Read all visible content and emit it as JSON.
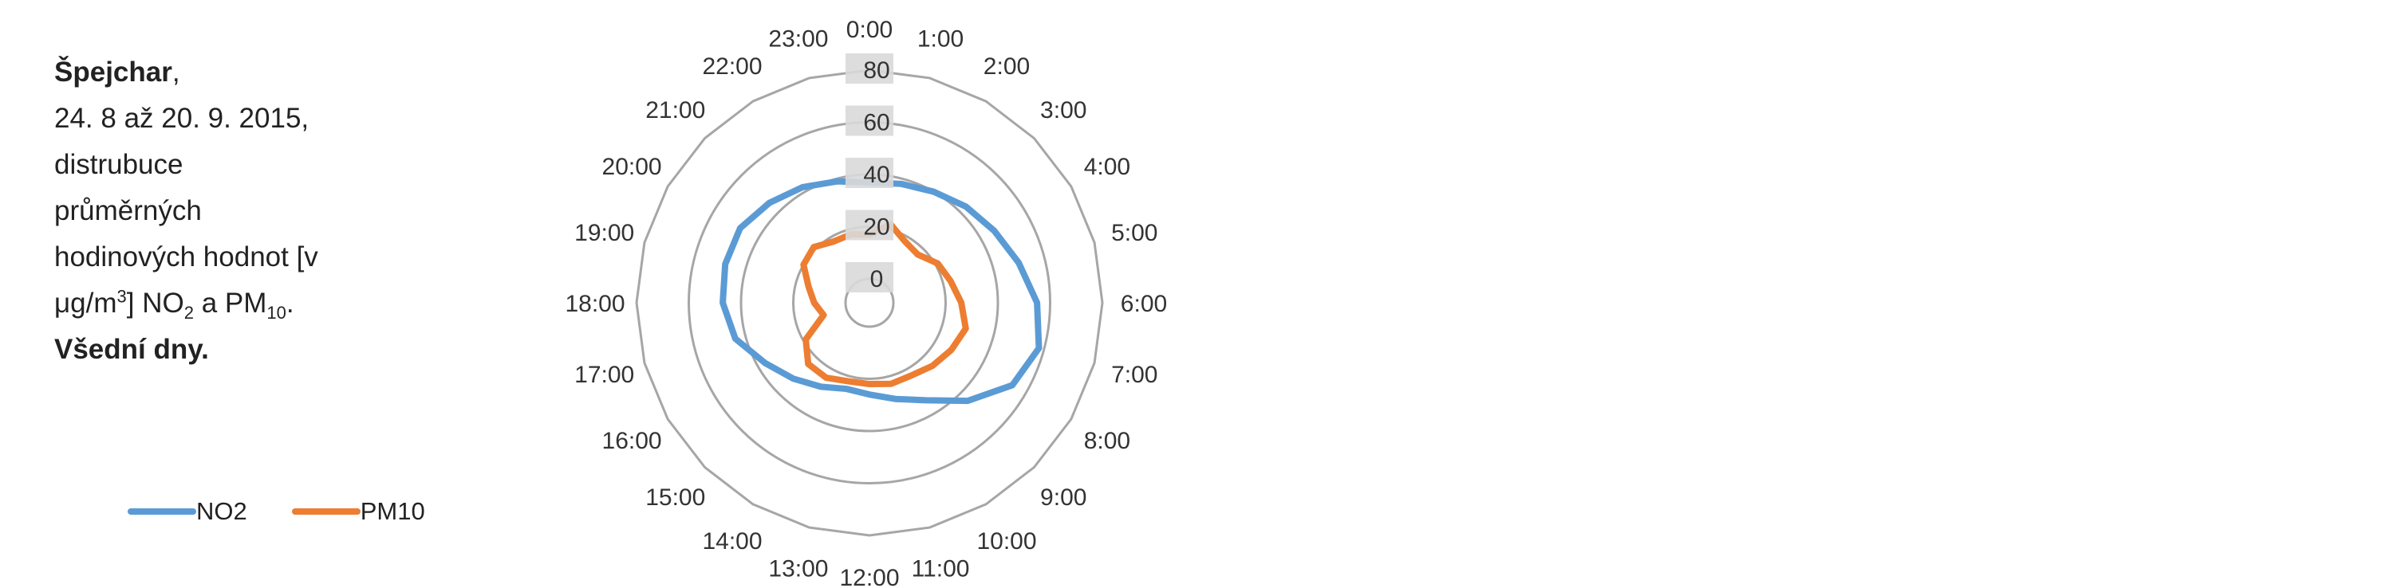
{
  "caption": {
    "site": "Špejchar",
    "site_comma": ",",
    "period": "24. 8 až 20. 9. 2015,",
    "line3": "distrubuce",
    "line4": "průměrných",
    "line5": "hodinových hodnot [v",
    "unit_prefix": "μg/m",
    "unit_sup": "3",
    "unit_mid": "] NO",
    "no2_sub": "2",
    "and_pm": " a PM",
    "pm_sub": "10",
    "period_end": ".",
    "days": "Všední dny."
  },
  "chart_data": {
    "type": "radar",
    "categories": [
      "1:00",
      "2:00",
      "3:00",
      "4:00",
      "5:00",
      "6:00",
      "7:00",
      "8:00",
      "9:00",
      "10:00",
      "11:00",
      "12:00",
      "13:00",
      "14:00",
      "15:00",
      "16:00",
      "17:00",
      "18:00",
      "19:00",
      "20:00",
      "21:00",
      "22:00",
      "23:00",
      "0:00"
    ],
    "radial_ticks": [
      "0",
      "20",
      "40",
      "60",
      "80"
    ],
    "rlim": [
      0,
      80
    ],
    "grid": true,
    "legend_position": "bottom-left",
    "series": [
      {
        "name": "NO2",
        "color": "#5b9bd5",
        "values": [
          38,
          40,
          43,
          46,
          50,
          55,
          58,
          54,
          44,
          34,
          29,
          26,
          25,
          28,
          32,
          37,
          44,
          47,
          48,
          48,
          45,
          42,
          39,
          37
        ]
      },
      {
        "name": "PM10",
        "color": "#ed7d31",
        "values": [
          22,
          18,
          17,
          21,
          23,
          26,
          29,
          27,
          25,
          23,
          23,
          22,
          22,
          24,
          24,
          19,
          9,
          12,
          15,
          20,
          21,
          18,
          18,
          17
        ]
      }
    ]
  }
}
